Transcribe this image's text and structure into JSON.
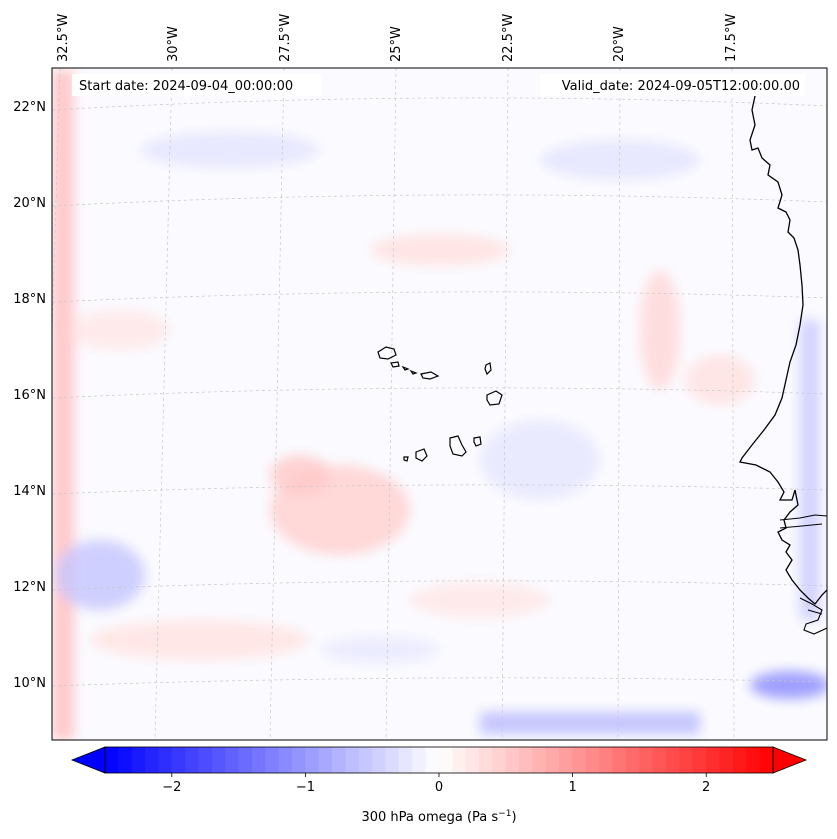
{
  "map": {
    "start_date": "Start date: 2024-09-04_00:00:00",
    "valid_date": "Valid_date: 2024-09-05T12:00:00.00",
    "lon_labels": [
      "32.5°W",
      "30°W",
      "27.5°W",
      "25°W",
      "22.5°W",
      "20°W",
      "17.5°W"
    ],
    "lat_labels": [
      "22°N",
      "20°N",
      "18°N",
      "16°N",
      "14°N",
      "12°N",
      "10°N"
    ],
    "variable": "300 hPa omega",
    "colormap": "bwr",
    "colors": {
      "neg": "#0000ff",
      "zero": "#ffffff",
      "pos": "#ff0000",
      "coast": "#000000",
      "grid": "#c8c8c8"
    }
  },
  "colorbar": {
    "label": "300 hPa omega (Pa s",
    "label_exp": "−1",
    "label_close": ")",
    "ticks": [
      "−2",
      "−1",
      "0",
      "1",
      "2"
    ],
    "tick_values": [
      -2,
      -1,
      0,
      1,
      2
    ],
    "range": [
      -2.5,
      2.5
    ],
    "extend": "both"
  }
}
